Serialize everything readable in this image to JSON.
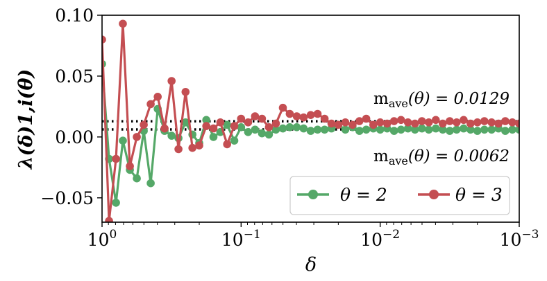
{
  "chart_data": {
    "type": "line",
    "xlabel": "δ",
    "ylabel": "λ(δ)1,i(θ)",
    "xscale": "log",
    "x_reversed": true,
    "xlim": [
      1,
      0.001
    ],
    "ylim": [
      -0.07,
      0.1
    ],
    "xticks": [
      {
        "value": 1,
        "label": "10^0"
      },
      {
        "value": 0.1,
        "label": "10^−1"
      },
      {
        "value": 0.01,
        "label": "10^−2"
      },
      {
        "value": 0.001,
        "label": "10^−3"
      }
    ],
    "yticks": [
      {
        "value": 0.1,
        "label": "0.10"
      },
      {
        "value": 0.05,
        "label": "0.05"
      },
      {
        "value": 0.0,
        "label": "0.00"
      },
      {
        "value": -0.05,
        "label": "−0.05"
      }
    ],
    "grid": false,
    "legend_position": "bottom-right",
    "series": [
      {
        "name": "θ = 2",
        "color": "#55a868",
        "x": [
          1.0,
          0.89,
          0.794,
          0.708,
          0.631,
          0.562,
          0.501,
          0.447,
          0.398,
          0.355,
          0.316,
          0.282,
          0.251,
          0.224,
          0.2,
          0.178,
          0.158,
          0.141,
          0.126,
          0.112,
          0.1,
          0.0891,
          0.0794,
          0.0708,
          0.0631,
          0.0562,
          0.0501,
          0.0447,
          0.0398,
          0.0355,
          0.0316,
          0.0282,
          0.0251,
          0.0224,
          0.02,
          0.0178,
          0.0158,
          0.0141,
          0.0126,
          0.0112,
          0.01,
          0.00891,
          0.00794,
          0.00708,
          0.00631,
          0.00562,
          0.00501,
          0.00447,
          0.00398,
          0.00355,
          0.00316,
          0.00282,
          0.00251,
          0.00224,
          0.002,
          0.00178,
          0.00158,
          0.00141,
          0.00126,
          0.00112,
          0.001
        ],
        "y": [
          0.06,
          -0.018,
          -0.054,
          -0.003,
          -0.027,
          -0.034,
          0.005,
          -0.038,
          0.023,
          0.005,
          0.001,
          -0.001,
          0.012,
          0.002,
          -0.005,
          0.014,
          0.0,
          0.004,
          0.01,
          -0.003,
          0.008,
          0.004,
          0.006,
          0.003,
          0.002,
          0.006,
          0.007,
          0.008,
          0.008,
          0.007,
          0.005,
          0.006,
          0.006,
          0.007,
          0.01,
          0.006,
          0.008,
          0.005,
          0.006,
          0.007,
          0.006,
          0.007,
          0.005,
          0.006,
          0.007,
          0.006,
          0.007,
          0.006,
          0.007,
          0.006,
          0.005,
          0.006,
          0.007,
          0.006,
          0.005,
          0.006,
          0.006,
          0.007,
          0.005,
          0.006,
          0.006
        ]
      },
      {
        "name": "θ = 3",
        "color": "#c44e52",
        "x": [
          1.0,
          0.89,
          0.794,
          0.708,
          0.631,
          0.562,
          0.501,
          0.447,
          0.398,
          0.355,
          0.316,
          0.282,
          0.251,
          0.224,
          0.2,
          0.178,
          0.158,
          0.141,
          0.126,
          0.112,
          0.1,
          0.0891,
          0.0794,
          0.0708,
          0.0631,
          0.0562,
          0.0501,
          0.0447,
          0.0398,
          0.0355,
          0.0316,
          0.0282,
          0.0251,
          0.0224,
          0.02,
          0.0178,
          0.0158,
          0.0141,
          0.0126,
          0.0112,
          0.01,
          0.00891,
          0.00794,
          0.00708,
          0.00631,
          0.00562,
          0.00501,
          0.00447,
          0.00398,
          0.00355,
          0.00316,
          0.00282,
          0.00251,
          0.00224,
          0.002,
          0.00178,
          0.00158,
          0.00141,
          0.00126,
          0.00112,
          0.001
        ],
        "y": [
          0.08,
          -0.069,
          -0.018,
          0.093,
          -0.024,
          0.0,
          0.01,
          0.027,
          0.033,
          0.007,
          0.046,
          -0.01,
          0.037,
          -0.009,
          -0.007,
          0.009,
          0.007,
          0.012,
          -0.006,
          0.009,
          0.015,
          0.012,
          0.017,
          0.015,
          0.008,
          0.011,
          0.024,
          0.019,
          0.017,
          0.016,
          0.018,
          0.019,
          0.015,
          0.011,
          0.01,
          0.012,
          0.01,
          0.013,
          0.015,
          0.01,
          0.012,
          0.011,
          0.013,
          0.014,
          0.012,
          0.011,
          0.013,
          0.012,
          0.014,
          0.011,
          0.013,
          0.012,
          0.014,
          0.011,
          0.012,
          0.013,
          0.012,
          0.011,
          0.013,
          0.012,
          0.011
        ]
      }
    ],
    "reference_lines": [
      {
        "value": 0.0129,
        "style": "dotted",
        "color": "#000000"
      },
      {
        "value": 0.0062,
        "style": "dotted",
        "color": "#000000"
      }
    ],
    "annotations": [
      {
        "text_main": "m",
        "text_sub": "ave",
        "text_rest": "(θ) = 0.0129"
      },
      {
        "text_main": "m",
        "text_sub": "ave",
        "text_rest": "(θ) = 0.0062"
      }
    ]
  }
}
